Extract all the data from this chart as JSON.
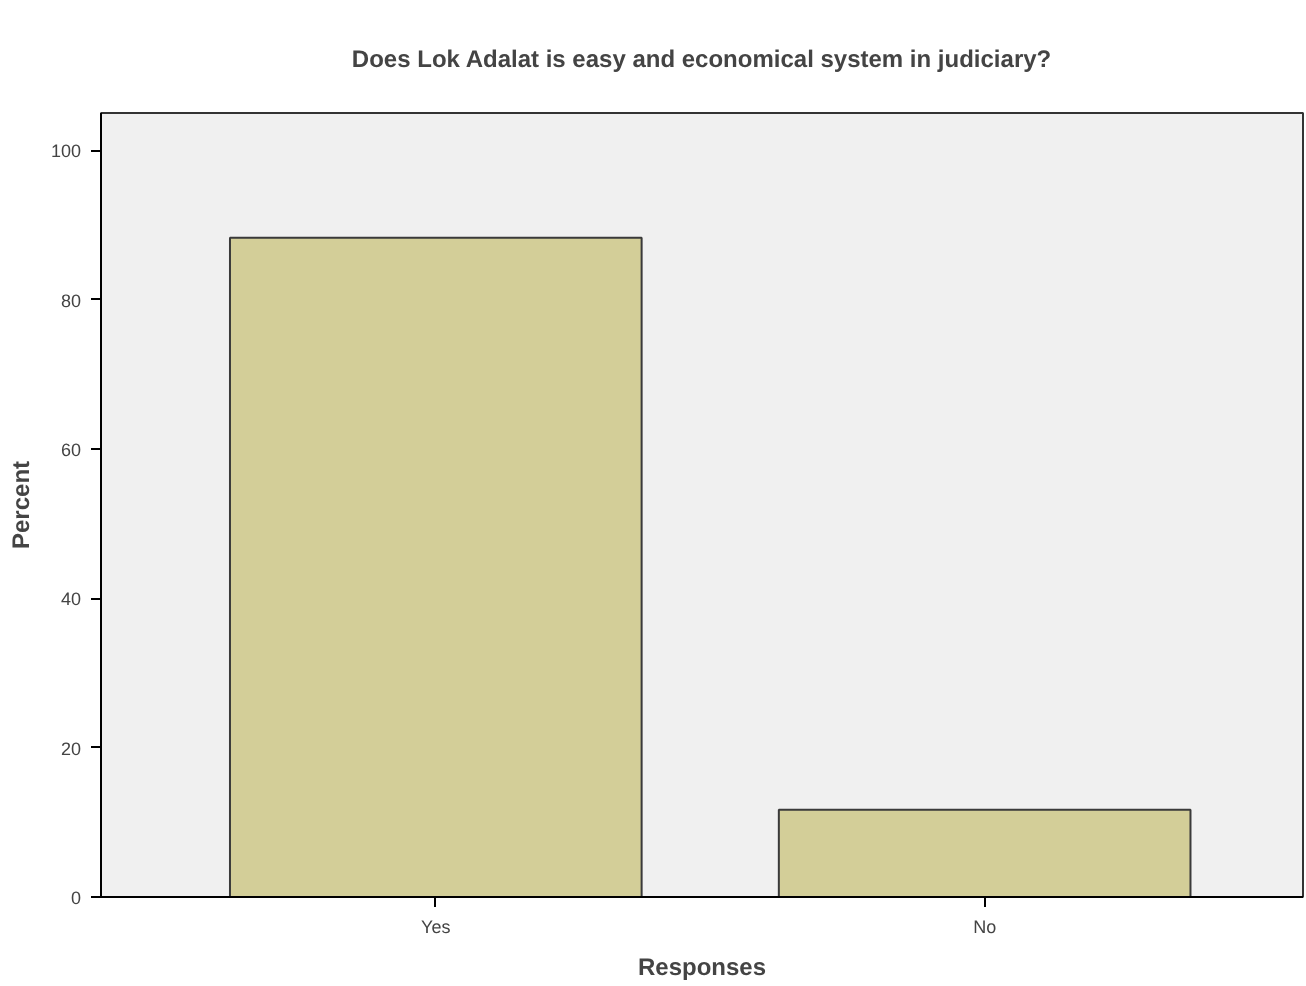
{
  "chart_data": {
    "type": "bar",
    "title": "Does Lok Adalat is easy and economical system in judiciary?",
    "xlabel": "Responses",
    "ylabel": "Percent",
    "categories": [
      "Yes",
      "No"
    ],
    "values": [
      88.3,
      11.7
    ],
    "color": "#d3ce98",
    "ylim": [
      0,
      105
    ],
    "yticks": [
      0,
      20,
      40,
      60,
      80,
      100
    ],
    "grid": false
  }
}
